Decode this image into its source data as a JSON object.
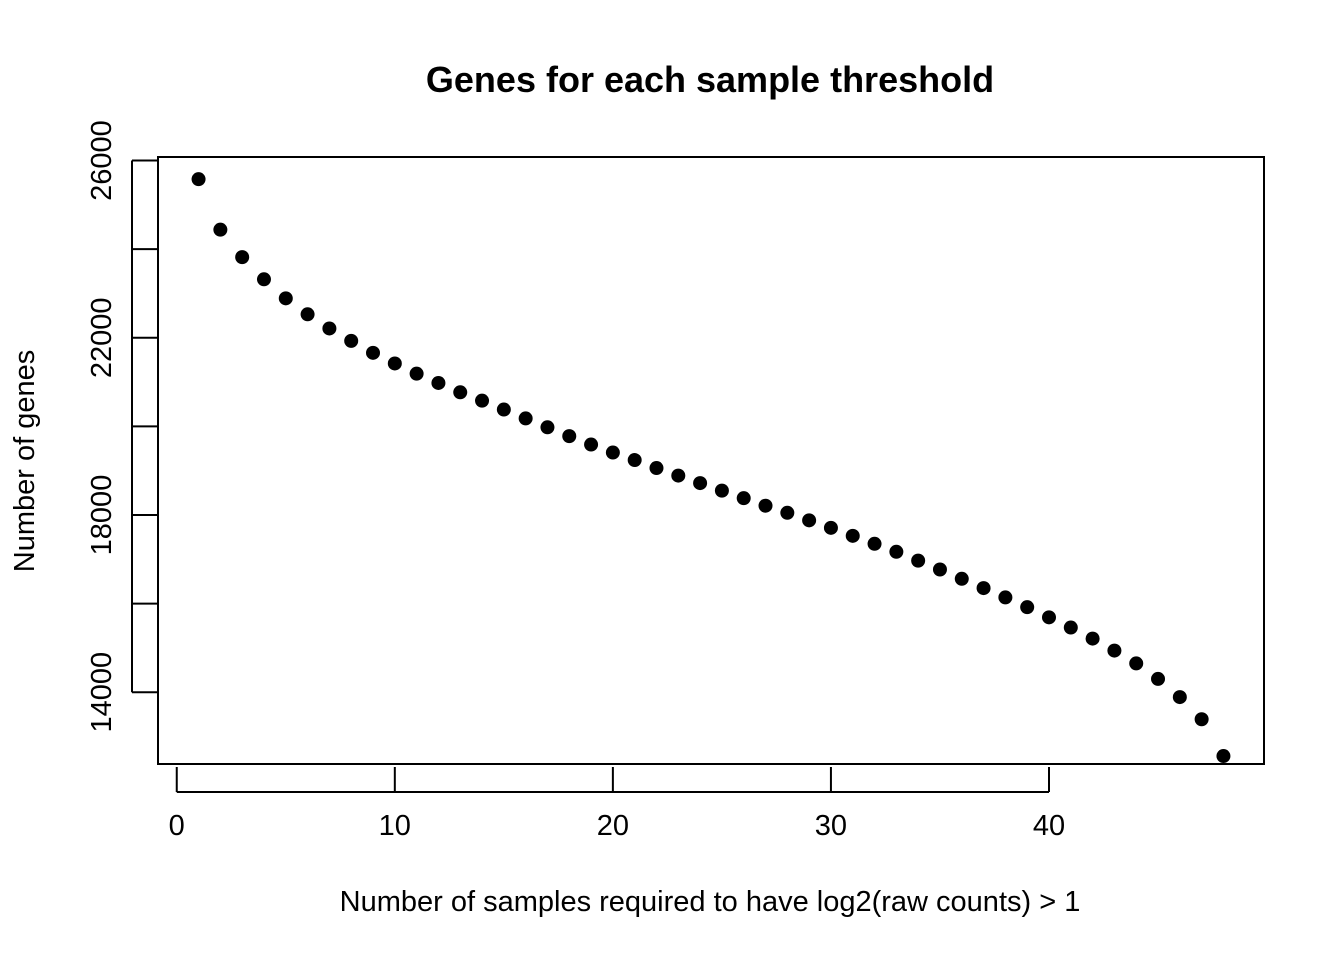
{
  "chart_data": {
    "type": "scatter",
    "title": "Genes for each sample threshold",
    "xlabel": "Number of samples required to have log2(raw counts) > 1",
    "ylabel": "Number of genes",
    "xlim": [
      -0.86,
      49.86
    ],
    "ylim": [
      12380,
      26080
    ],
    "x_ticks": [
      0,
      10,
      20,
      30,
      40
    ],
    "y_ticks": [
      14000,
      16000,
      18000,
      20000,
      22000,
      24000,
      26000
    ],
    "y_tick_labels": [
      "14000",
      "",
      "18000",
      "",
      "22000",
      "",
      "26000"
    ],
    "grid": false,
    "legend": "none",
    "point_color": "#000000",
    "series": [
      {
        "x": [
          1,
          2,
          3,
          4,
          5,
          6,
          7,
          8,
          9,
          10,
          11,
          12,
          13,
          14,
          15,
          16,
          17,
          18,
          19,
          20,
          21,
          22,
          23,
          24,
          25,
          26,
          27,
          28,
          29,
          30,
          31,
          32,
          33,
          34,
          35,
          36,
          37,
          38,
          39,
          40,
          41,
          42,
          43,
          44,
          45,
          46,
          47,
          48
        ],
        "y": [
          25580,
          24440,
          23820,
          23320,
          22890,
          22530,
          22210,
          21930,
          21660,
          21420,
          21190,
          20980,
          20770,
          20580,
          20380,
          20180,
          19980,
          19780,
          19590,
          19410,
          19240,
          19060,
          18890,
          18720,
          18550,
          18380,
          18210,
          18050,
          17880,
          17710,
          17530,
          17350,
          17170,
          16970,
          16770,
          16560,
          16350,
          16140,
          15920,
          15690,
          15460,
          15210,
          14940,
          14650,
          14300,
          13890,
          13390,
          12560
        ]
      }
    ]
  }
}
